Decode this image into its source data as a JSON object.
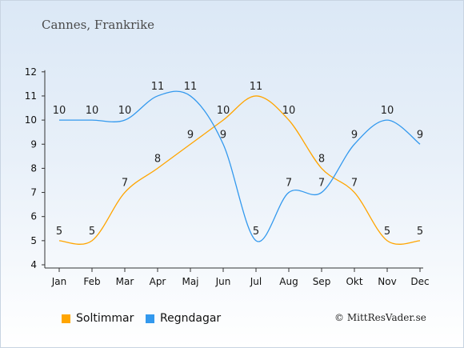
{
  "title": "Cannes, Frankrike",
  "copyright": "© MittResVader.se",
  "colors": {
    "sun": "#ffa500",
    "rain": "#3399ee",
    "axis": "#333333"
  },
  "chart_data": {
    "type": "line",
    "categories": [
      "Jan",
      "Feb",
      "Mar",
      "Apr",
      "Maj",
      "Jun",
      "Jul",
      "Aug",
      "Sep",
      "Okt",
      "Nov",
      "Dec"
    ],
    "ylim": [
      4,
      12
    ],
    "yticks": [
      4,
      5,
      6,
      7,
      8,
      9,
      10,
      11,
      12
    ],
    "grid": false,
    "legend_position": "bottom-left",
    "series": [
      {
        "name": "Soltimmar",
        "color": "#ffa500",
        "values": [
          5,
          5,
          7,
          8,
          9,
          10,
          11,
          10,
          8,
          7,
          5,
          5
        ]
      },
      {
        "name": "Regndagar",
        "color": "#3399ee",
        "values": [
          10,
          10,
          10,
          11,
          11,
          9,
          5,
          7,
          7,
          9,
          10,
          9
        ]
      }
    ]
  }
}
